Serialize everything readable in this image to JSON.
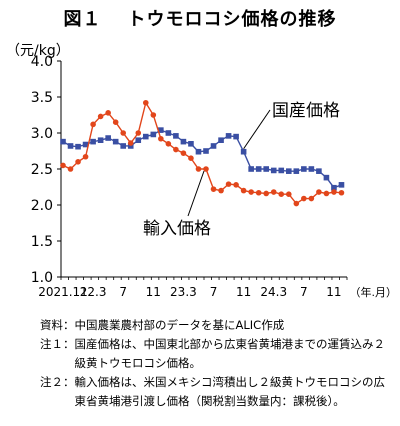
{
  "figure": {
    "number": "図１",
    "title": "トウモロコシ価格の推移",
    "unit": "（元/kg）"
  },
  "chart_data": {
    "type": "line",
    "title": "トウモロコシ価格の推移",
    "ylabel": "（元/kg）",
    "xlabel": "（年.月）",
    "ylim": [
      1.0,
      4.0
    ],
    "y_ticks": [
      "1.0",
      "1.5",
      "2.0",
      "2.5",
      "3.0",
      "3.5",
      "4.0"
    ],
    "x_tick_labels": [
      {
        "month_index": 0,
        "label": "2021.11"
      },
      {
        "month_index": 4,
        "label": "22.3"
      },
      {
        "month_index": 8,
        "label": "7"
      },
      {
        "month_index": 12,
        "label": "11"
      },
      {
        "month_index": 16,
        "label": "23.3"
      },
      {
        "month_index": 20,
        "label": "7"
      },
      {
        "month_index": 24,
        "label": "11"
      },
      {
        "month_index": 28,
        "label": "24.3"
      },
      {
        "month_index": 32,
        "label": "7"
      },
      {
        "month_index": 36,
        "label": "11"
      }
    ],
    "x_unit_label": "（年.月）",
    "grid": false,
    "series": [
      {
        "name": "国産価格",
        "color": "#3a4fa3",
        "marker": "square",
        "values": [
          2.88,
          2.82,
          2.81,
          2.84,
          2.88,
          2.9,
          2.93,
          2.88,
          2.82,
          2.82,
          2.9,
          2.95,
          2.98,
          3.04,
          3.0,
          2.96,
          2.88,
          2.85,
          2.74,
          2.75,
          2.82,
          2.9,
          2.96,
          2.95,
          2.74,
          2.5,
          2.5,
          2.5,
          2.48,
          2.48,
          2.47,
          2.47,
          2.5,
          2.5,
          2.47,
          2.38,
          2.24,
          2.28
        ]
      },
      {
        "name": "輸入価格",
        "color": "#e2461b",
        "marker": "circle",
        "values": [
          2.55,
          2.5,
          2.6,
          2.67,
          3.12,
          3.23,
          3.28,
          3.15,
          3.0,
          2.86,
          3.0,
          3.42,
          3.25,
          2.92,
          2.85,
          2.77,
          2.72,
          2.65,
          2.5,
          2.5,
          2.22,
          2.2,
          2.29,
          2.28,
          2.2,
          2.18,
          2.17,
          2.16,
          2.18,
          2.15,
          2.15,
          2.02,
          2.09,
          2.09,
          2.18,
          2.16,
          2.18,
          2.17
        ]
      }
    ],
    "annotations": [
      "国産価格",
      "輸入価格"
    ]
  },
  "notes": [
    {
      "label": "資料：",
      "text": "中国農業農村部のデータを基にALIC作成"
    },
    {
      "label": "注１：",
      "text": "国産価格は、中国東北部から広東省黄埔港までの運賃込み２級黄トウモロコシ価格。"
    },
    {
      "label": "注２：",
      "text": "輸入価格は、米国メキシコ湾積出し２級黄トウモロコシの広東省黄埔港引渡し価格（関税割当数量内：課税後）。"
    }
  ]
}
